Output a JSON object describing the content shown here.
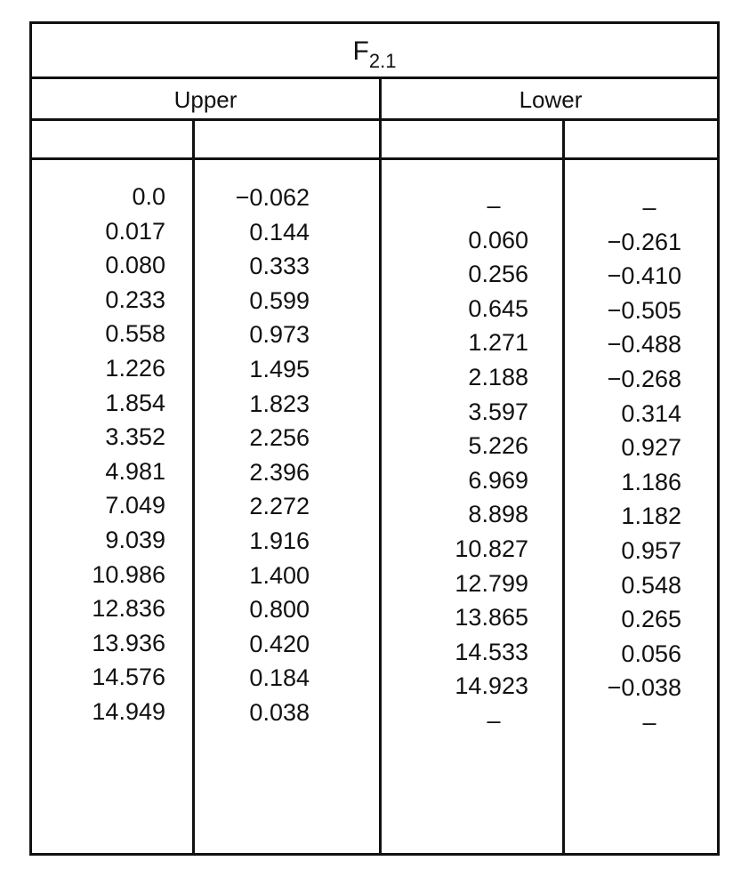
{
  "title": {
    "main": "F",
    "sub": "2.1"
  },
  "groups": {
    "upper": "Upper",
    "lower": "Lower"
  },
  "upper_col1": [
    "0.0",
    "0.017",
    "0.080",
    "0.233",
    "0.558",
    "1.226",
    "1.854",
    "3.352",
    "4.981",
    "7.049",
    "9.039",
    "10.986",
    "12.836",
    "13.936",
    "14.576",
    "14.949"
  ],
  "upper_col2": [
    "−0.062",
    "0.144",
    "0.333",
    "0.599",
    "0.973",
    "1.495",
    "1.823",
    "2.256",
    "2.396",
    "2.272",
    "1.916",
    "1.400",
    "0.800",
    "0.420",
    "0.184",
    "0.038"
  ],
  "lower_col1": [
    "–",
    "0.060",
    "0.256",
    "0.645",
    "1.271",
    "2.188",
    "3.597",
    "5.226",
    "6.969",
    "8.898",
    "10.827",
    "12.799",
    "13.865",
    "14.533",
    "14.923",
    "–"
  ],
  "lower_col2": [
    "–",
    "−0.261",
    "−0.410",
    "−0.505",
    "−0.488",
    "−0.268",
    "0.314",
    "0.927",
    "1.186",
    "1.182",
    "0.957",
    "0.548",
    "0.265",
    "0.056",
    "−0.038",
    "–"
  ]
}
